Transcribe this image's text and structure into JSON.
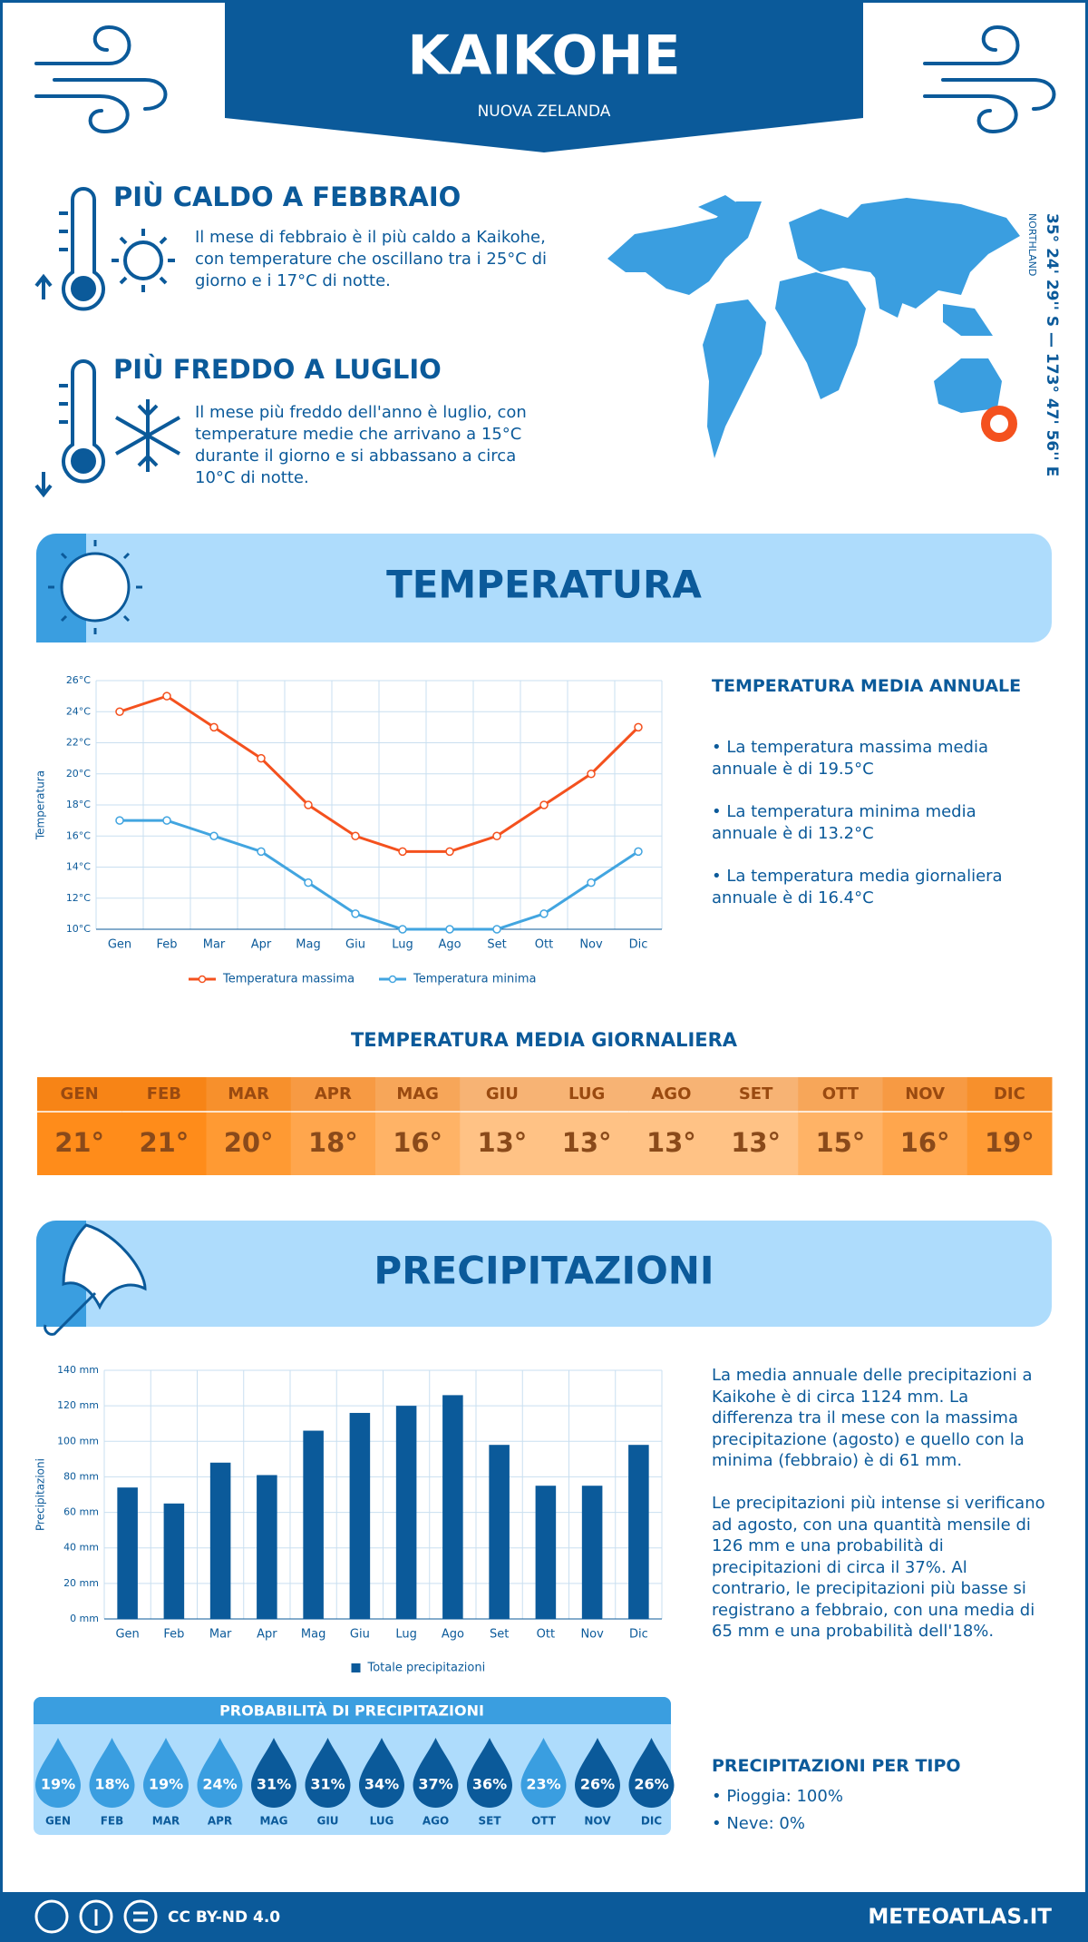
{
  "header": {
    "title": "KAIKOHE",
    "subtitle": "NUOVA ZELANDA"
  },
  "highlights": [
    {
      "title": "PIÙ CALDO A FEBBRAIO",
      "text": "Il mese di febbraio è il più caldo a Kaikohe, con temperature che oscillano tra i 25°C di giorno e i 17°C di notte."
    },
    {
      "title": "PIÙ FREDDO A LUGLIO",
      "text": "Il mese più freddo dell'anno è luglio, con temperature medie che arrivano a 15°C durante il giorno e si abbassano a circa 10°C di notte."
    }
  ],
  "location": {
    "coordinates": "35° 24' 29'' S — 173° 47' 56'' E",
    "region": "NORTHLAND"
  },
  "sections": {
    "temperature": "TEMPERATURA",
    "precipitation": "PRECIPITAZIONI"
  },
  "chart_data": [
    {
      "type": "line",
      "y_label": "Temperatura",
      "categories": [
        "Gen",
        "Feb",
        "Mar",
        "Apr",
        "Mag",
        "Giu",
        "Lug",
        "Ago",
        "Set",
        "Ott",
        "Nov",
        "Dic"
      ],
      "series": [
        {
          "name": "Temperatura massima",
          "color": "#f4511e",
          "values": [
            24,
            25,
            23,
            21,
            18,
            16,
            15,
            15,
            16,
            18,
            20,
            23
          ]
        },
        {
          "name": "Temperatura minima",
          "color": "#42a5e0",
          "values": [
            17,
            17,
            16,
            15,
            13,
            11,
            10,
            10,
            10,
            11,
            13,
            15
          ]
        }
      ],
      "ylim": [
        10,
        26
      ],
      "yticks": [
        {
          "value": 10,
          "label": "10°C"
        },
        {
          "value": 12,
          "label": "12°C"
        },
        {
          "value": 14,
          "label": "14°C"
        },
        {
          "value": 16,
          "label": "16°C"
        },
        {
          "value": 18,
          "label": "18°C"
        },
        {
          "value": 20,
          "label": "20°C"
        },
        {
          "value": 22,
          "label": "22°C"
        },
        {
          "value": 24,
          "label": "24°C"
        },
        {
          "value": 26,
          "label": "26°C"
        }
      ],
      "grid": true
    },
    {
      "type": "bar",
      "y_label": "Precipitazioni",
      "categories": [
        "Gen",
        "Feb",
        "Mar",
        "Apr",
        "Mag",
        "Giu",
        "Lug",
        "Ago",
        "Set",
        "Ott",
        "Nov",
        "Dic"
      ],
      "series": [
        {
          "name": "Totale precipitazioni",
          "color": "#0b5a9a",
          "values": [
            74,
            65,
            88,
            81,
            106,
            116,
            120,
            126,
            98,
            75,
            75,
            98
          ]
        }
      ],
      "ylim": [
        0,
        140
      ],
      "yticks": [
        {
          "value": 0,
          "label": "0 mm"
        },
        {
          "value": 20,
          "label": "20 mm"
        },
        {
          "value": 40,
          "label": "40 mm"
        },
        {
          "value": 60,
          "label": "60 mm"
        },
        {
          "value": 80,
          "label": "80 mm"
        },
        {
          "value": 100,
          "label": "100 mm"
        },
        {
          "value": 120,
          "label": "120 mm"
        },
        {
          "value": 140,
          "label": "140 mm"
        }
      ],
      "grid": true
    }
  ],
  "temperature_summary": {
    "title": "TEMPERATURA MEDIA ANNUALE",
    "items": [
      "• La temperatura massima media annuale è di 19.5°C",
      "• La temperatura minima media annuale è di 13.2°C",
      "• La temperatura media giornaliera annuale è di 16.4°C"
    ]
  },
  "daily_table": {
    "title": "TEMPERATURA MEDIA GIORNALIERA",
    "months": [
      "GEN",
      "FEB",
      "MAR",
      "APR",
      "MAG",
      "GIU",
      "LUG",
      "AGO",
      "SET",
      "OTT",
      "NOV",
      "DIC"
    ],
    "values": [
      "21°",
      "21°",
      "20°",
      "18°",
      "16°",
      "13°",
      "13°",
      "13°",
      "13°",
      "15°",
      "16°",
      "19°"
    ],
    "colors": [
      "#ff8c1a",
      "#ff8c1a",
      "#ff9a33",
      "#ffa64d",
      "#ffb366",
      "#ffc285",
      "#ffc285",
      "#ffc285",
      "#ffc285",
      "#ffb366",
      "#ffa64d",
      "#ff9a33"
    ]
  },
  "precipitation_summary": {
    "paragraphs": [
      "La media annuale delle precipitazioni a Kaikohe è di circa 1124 mm. La differenza tra il mese con la massima precipitazione (agosto) e quello con la minima (febbraio) è di 61 mm.",
      "Le precipitazioni più intense si verificano ad agosto, con una quantità mensile di 126 mm e una probabilità di precipitazioni di circa il 37%. Al contrario, le precipitazioni più basse si registrano a febbraio, con una media di 65 mm e una probabilità dell'18%."
    ]
  },
  "probability": {
    "title": "PROBABILITÀ DI PRECIPITAZIONI",
    "months": [
      "GEN",
      "FEB",
      "MAR",
      "APR",
      "MAG",
      "GIU",
      "LUG",
      "AGO",
      "SET",
      "OTT",
      "NOV",
      "DIC"
    ],
    "values": [
      "19%",
      "18%",
      "19%",
      "24%",
      "31%",
      "31%",
      "34%",
      "37%",
      "36%",
      "23%",
      "26%",
      "26%"
    ],
    "colors": [
      "#3a9ee0",
      "#3a9ee0",
      "#3a9ee0",
      "#3a9ee0",
      "#0b5a9a",
      "#0b5a9a",
      "#0b5a9a",
      "#0b5a9a",
      "#0b5a9a",
      "#3a9ee0",
      "#0b5a9a",
      "#0b5a9a"
    ]
  },
  "precipitation_type": {
    "title": "PRECIPITAZIONI PER TIPO",
    "items": [
      "• Pioggia: 100%",
      "• Neve: 0%"
    ]
  },
  "footer": {
    "license": "CC BY-ND 4.0",
    "site": "METEOATLAS.IT"
  }
}
